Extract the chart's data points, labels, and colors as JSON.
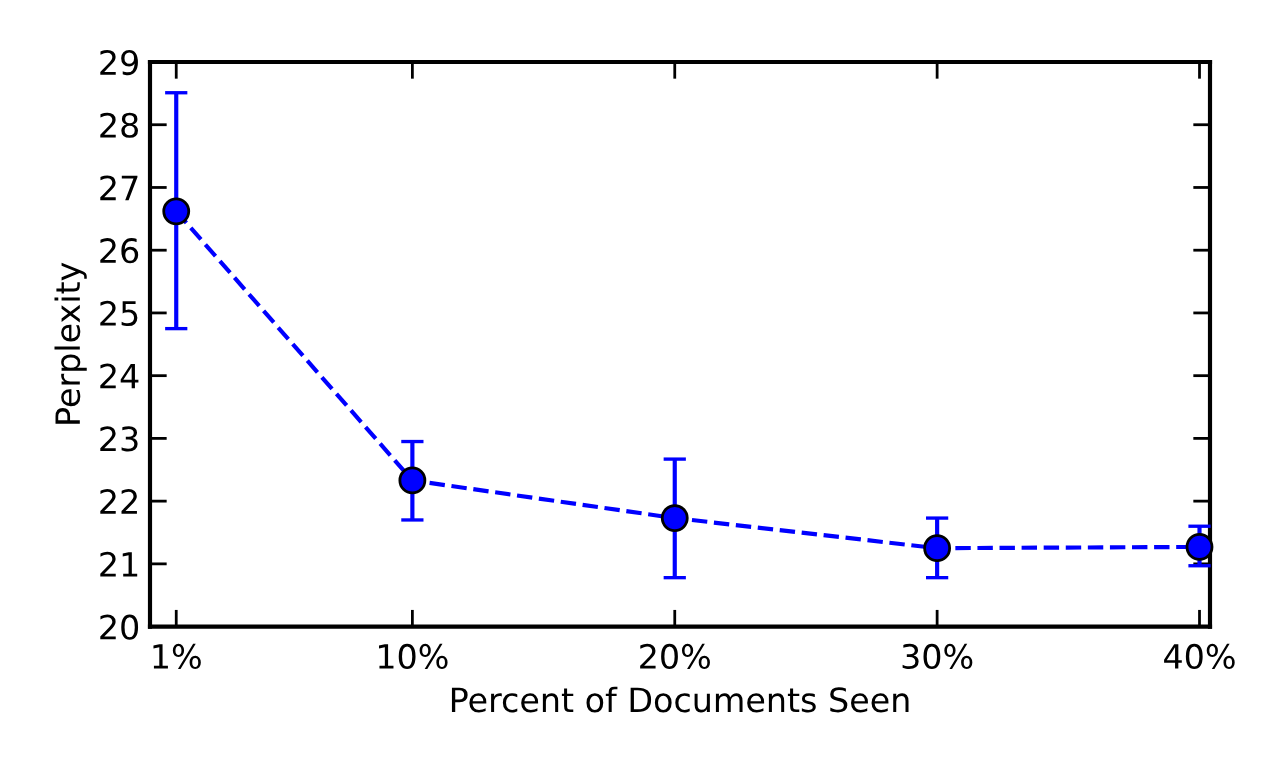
{
  "chart_data": {
    "type": "line",
    "xlabel": "Percent of Documents Seen",
    "ylabel": "Perplexity",
    "x": [
      1,
      10,
      20,
      30,
      40
    ],
    "series": [
      {
        "color": "#0000ff",
        "values": [
          26.62,
          22.33,
          21.73,
          21.25,
          21.27
        ],
        "errors": [
          [
            24.75,
            28.51
          ],
          [
            21.7,
            22.95
          ],
          [
            20.78,
            22.67
          ],
          [
            20.78,
            21.73
          ],
          [
            20.97,
            21.6
          ]
        ]
      }
    ],
    "xlim": [
      0,
      40.4
    ],
    "ylim": [
      20,
      29
    ],
    "xticks": [
      {
        "value": 1,
        "label": "1%"
      },
      {
        "value": 10,
        "label": "10%"
      },
      {
        "value": 20,
        "label": "20%"
      },
      {
        "value": 30,
        "label": "30%"
      },
      {
        "value": 40,
        "label": "40%"
      }
    ],
    "yticks": [
      20,
      21,
      22,
      23,
      24,
      25,
      26,
      27,
      28,
      29
    ],
    "marker": "circle",
    "line_style": "dashed",
    "grid": false,
    "legend": false
  }
}
